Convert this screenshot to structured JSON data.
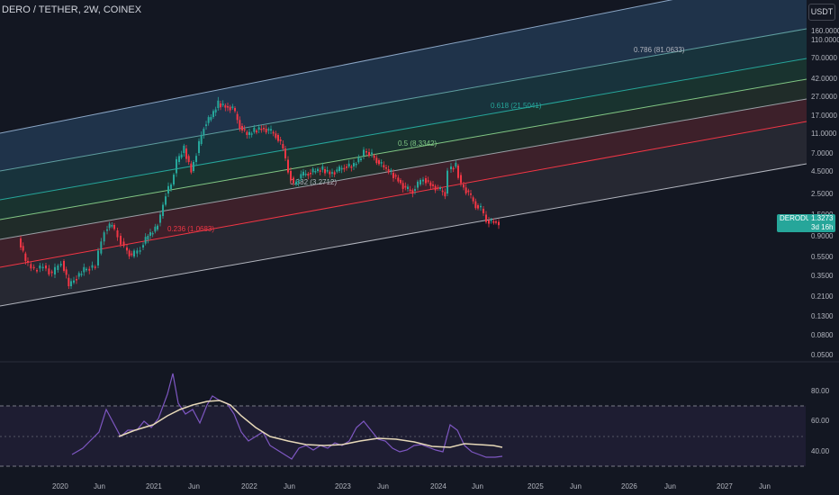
{
  "header": {
    "title": "DERO / TETHER, 2W, COINEX",
    "currency_button": "USDT"
  },
  "price_axis": {
    "ticks": [
      "160.0000",
      "110.0000",
      "70.0000",
      "42.0000",
      "27.0000",
      "17.0000",
      "11.0000",
      "7.0000",
      "4.5000",
      "2.5000",
      "1.5000",
      "0.9000",
      "0.5500",
      "0.3500",
      "0.2100",
      "0.1300",
      "0.0800",
      "0.0500"
    ]
  },
  "rsi_axis": {
    "ticks": [
      "80.00",
      "60.00",
      "40.00"
    ]
  },
  "time_axis": {
    "ticks": [
      "2020",
      "Jun",
      "2021",
      "Jun",
      "2022",
      "Jun",
      "2023",
      "Jun",
      "2024",
      "Jun",
      "2025",
      "Jun",
      "2026",
      "Jun",
      "2027",
      "Jun"
    ]
  },
  "fib_levels": [
    {
      "label": "0.786 (81.0633)",
      "color": "#b2b5be"
    },
    {
      "label": "0.618 (21.5041)",
      "color": "#26a69a"
    },
    {
      "label": "0.5 (8.3342)",
      "color": "#81c784"
    },
    {
      "label": "0.382 (3.2712)",
      "color": "#b2b5be"
    },
    {
      "label": "0.236 (1.0683)",
      "color": "#f23645"
    }
  ],
  "price_tag": {
    "symbol": "DERODUSDT",
    "price": "1.3273",
    "countdown": "3d 16h",
    "color": "#26a69a"
  },
  "colors": {
    "up": "#26a69a",
    "down": "#f23645",
    "rsi": "#7e57c2",
    "rsi_ma": "#e6d8b8",
    "background": "#131722"
  }
}
